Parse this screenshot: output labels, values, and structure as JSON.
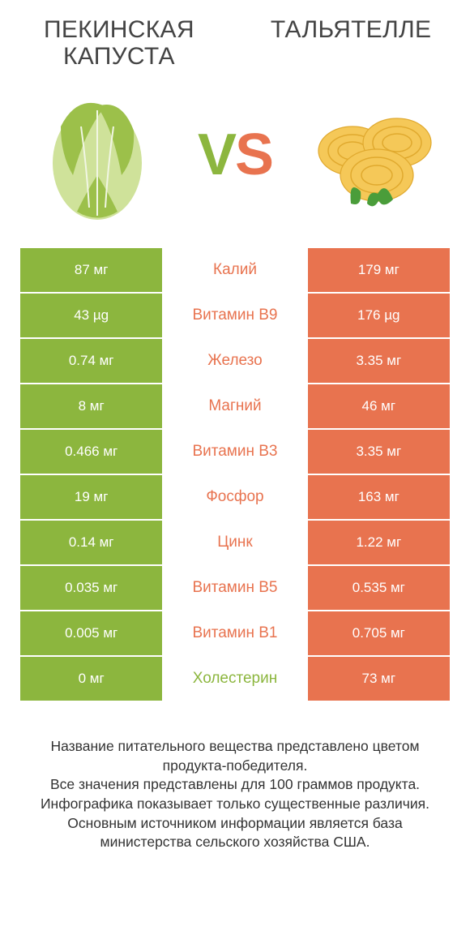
{
  "colors": {
    "left": "#8cb63e",
    "right": "#e8734f",
    "bg": "#ffffff",
    "text": "#333333"
  },
  "titles": {
    "left": "ПЕКИНСКАЯ КАПУСТА",
    "right": "ТАЛЬЯТЕЛЛЕ"
  },
  "vs": {
    "v": "V",
    "s": "S"
  },
  "table": {
    "rows": [
      {
        "left": "87 мг",
        "label": "Калий",
        "right": "179 мг",
        "winner": "right"
      },
      {
        "left": "43 µg",
        "label": "Витамин B9",
        "right": "176 µg",
        "winner": "right"
      },
      {
        "left": "0.74 мг",
        "label": "Железо",
        "right": "3.35 мг",
        "winner": "right"
      },
      {
        "left": "8 мг",
        "label": "Магний",
        "right": "46 мг",
        "winner": "right"
      },
      {
        "left": "0.466 мг",
        "label": "Витамин B3",
        "right": "3.35 мг",
        "winner": "right"
      },
      {
        "left": "19 мг",
        "label": "Фосфор",
        "right": "163 мг",
        "winner": "right"
      },
      {
        "left": "0.14 мг",
        "label": "Цинк",
        "right": "1.22 мг",
        "winner": "right"
      },
      {
        "left": "0.035 мг",
        "label": "Витамин B5",
        "right": "0.535 мг",
        "winner": "right"
      },
      {
        "left": "0.005 мг",
        "label": "Витамин B1",
        "right": "0.705 мг",
        "winner": "right"
      },
      {
        "left": "0 мг",
        "label": "Холестерин",
        "right": "73 мг",
        "winner": "left"
      }
    ]
  },
  "footer": {
    "line1": "Название питательного вещества представлено цветом продукта-победителя.",
    "line2": "Все значения представлены для 100 граммов продукта.",
    "line3": "Инфографика показывает только существенные различия.",
    "line4": "Основным источником информации является база министерства сельского хозяйства США."
  }
}
